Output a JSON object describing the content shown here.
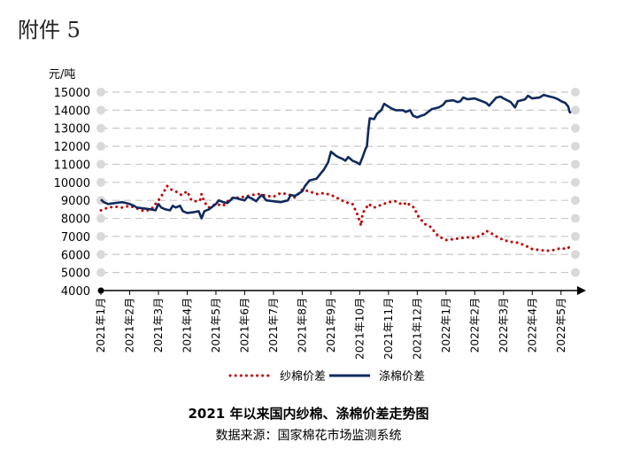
{
  "header": {
    "annex_label": "附件 5"
  },
  "colors": {
    "yarn_series": "#c00000",
    "poly_series": "#0f2a5e",
    "grid": "#c8c8c8",
    "marker": "#d9d9d9"
  },
  "chart_data": {
    "type": "line",
    "title": "2021 年以来国内纱棉、涤棉价差走势图",
    "source": "数据来源：国家棉花市场监测系统",
    "y_unit": "元/吨",
    "ylim": [
      4000,
      15000
    ],
    "y_ticks": [
      "15000",
      "14000",
      "13000",
      "12000",
      "11000",
      "10000",
      "9000",
      "8000",
      "7000",
      "6000",
      "5000",
      "4000"
    ],
    "x_ticks": [
      "2021年1月",
      "2021年2月",
      "2021年3月",
      "2021年4月",
      "2021年5月",
      "2021年6月",
      "2021年7月",
      "2021年8月",
      "2021年9月",
      "2021年10月",
      "2021年11月",
      "2021年12月",
      "2022年1月",
      "2022年2月",
      "2022年3月",
      "2022年4月",
      "2022年5月"
    ],
    "grid": true,
    "legend_position": "bottom",
    "series": [
      {
        "name": "纱棉价差",
        "style": "dotted",
        "points": [
          [
            0,
            8450
          ],
          [
            0.25,
            8600
          ],
          [
            0.5,
            8650
          ],
          [
            0.75,
            8600
          ],
          [
            1,
            8700
          ],
          [
            1.25,
            8550
          ],
          [
            1.5,
            8400
          ],
          [
            1.75,
            8500
          ],
          [
            2,
            9000
          ],
          [
            2.15,
            9350
          ],
          [
            2.3,
            9800
          ],
          [
            2.45,
            9600
          ],
          [
            2.6,
            9500
          ],
          [
            2.8,
            9300
          ],
          [
            3,
            9500
          ],
          [
            3.15,
            9000
          ],
          [
            3.3,
            8950
          ],
          [
            3.45,
            9000
          ],
          [
            3.5,
            9350
          ],
          [
            3.6,
            8900
          ],
          [
            3.75,
            8600
          ],
          [
            4,
            8800
          ],
          [
            4.25,
            8700
          ],
          [
            4.5,
            9100
          ],
          [
            4.75,
            9150
          ],
          [
            5,
            9200
          ],
          [
            5.25,
            9300
          ],
          [
            5.5,
            9350
          ],
          [
            5.75,
            9250
          ],
          [
            6,
            9200
          ],
          [
            6.25,
            9400
          ],
          [
            6.5,
            9350
          ],
          [
            6.75,
            9150
          ],
          [
            7,
            9600
          ],
          [
            7.25,
            9500
          ],
          [
            7.5,
            9350
          ],
          [
            7.75,
            9400
          ],
          [
            8,
            9300
          ],
          [
            8.25,
            9100
          ],
          [
            8.5,
            8900
          ],
          [
            8.75,
            8800
          ],
          [
            8.9,
            8300
          ],
          [
            9,
            7800
          ],
          [
            9.05,
            7600
          ],
          [
            9.1,
            8300
          ],
          [
            9.2,
            8500
          ],
          [
            9.3,
            8800
          ],
          [
            9.5,
            8600
          ],
          [
            9.75,
            8750
          ],
          [
            10,
            8900
          ],
          [
            10.25,
            8950
          ],
          [
            10.5,
            8750
          ],
          [
            10.65,
            8900
          ],
          [
            10.75,
            8700
          ],
          [
            10.9,
            8600
          ],
          [
            11,
            8200
          ],
          [
            11.25,
            7700
          ],
          [
            11.5,
            7500
          ],
          [
            11.6,
            7250
          ],
          [
            11.75,
            7000
          ],
          [
            12,
            6800
          ],
          [
            12.25,
            6850
          ],
          [
            12.5,
            6900
          ],
          [
            12.75,
            6950
          ],
          [
            13,
            6900
          ],
          [
            13.25,
            7100
          ],
          [
            13.4,
            7300
          ],
          [
            13.5,
            7250
          ],
          [
            13.75,
            7000
          ],
          [
            14,
            6800
          ],
          [
            14.25,
            6700
          ],
          [
            14.5,
            6650
          ],
          [
            14.75,
            6500
          ],
          [
            15,
            6300
          ],
          [
            15.25,
            6250
          ],
          [
            15.5,
            6200
          ],
          [
            15.75,
            6250
          ],
          [
            16,
            6350
          ],
          [
            16.2,
            6300
          ],
          [
            16.35,
            6500
          ]
        ]
      },
      {
        "name": "涤棉价差",
        "style": "solid",
        "points": [
          [
            0,
            9050
          ],
          [
            0.1,
            8900
          ],
          [
            0.25,
            8800
          ],
          [
            0.5,
            8850
          ],
          [
            0.75,
            8900
          ],
          [
            1,
            8800
          ],
          [
            1.15,
            8700
          ],
          [
            1.25,
            8600
          ],
          [
            1.5,
            8550
          ],
          [
            1.75,
            8500
          ],
          [
            1.9,
            8450
          ],
          [
            2,
            8800
          ],
          [
            2.1,
            8600
          ],
          [
            2.25,
            8500
          ],
          [
            2.4,
            8450
          ],
          [
            2.5,
            8700
          ],
          [
            2.6,
            8600
          ],
          [
            2.75,
            8700
          ],
          [
            2.85,
            8400
          ],
          [
            3,
            8300
          ],
          [
            3.25,
            8350
          ],
          [
            3.4,
            8400
          ],
          [
            3.5,
            8000
          ],
          [
            3.6,
            8400
          ],
          [
            3.75,
            8500
          ],
          [
            4,
            8800
          ],
          [
            4.1,
            9000
          ],
          [
            4.25,
            8900
          ],
          [
            4.4,
            8850
          ],
          [
            4.5,
            9000
          ],
          [
            4.6,
            9150
          ],
          [
            4.75,
            9100
          ],
          [
            5,
            9000
          ],
          [
            5.1,
            9200
          ],
          [
            5.25,
            9100
          ],
          [
            5.4,
            8950
          ],
          [
            5.5,
            9150
          ],
          [
            5.6,
            9300
          ],
          [
            5.75,
            9000
          ],
          [
            6,
            8950
          ],
          [
            6.25,
            8900
          ],
          [
            6.5,
            9000
          ],
          [
            6.6,
            9300
          ],
          [
            6.75,
            9250
          ],
          [
            7,
            9500
          ],
          [
            7.1,
            9800
          ],
          [
            7.25,
            10100
          ],
          [
            7.5,
            10200
          ],
          [
            7.75,
            10700
          ],
          [
            7.9,
            11100
          ],
          [
            8,
            11700
          ],
          [
            8.15,
            11500
          ],
          [
            8.25,
            11400
          ],
          [
            8.4,
            11300
          ],
          [
            8.5,
            11200
          ],
          [
            8.6,
            11400
          ],
          [
            8.75,
            11200
          ],
          [
            8.9,
            11100
          ],
          [
            9,
            11000
          ],
          [
            9.1,
            11400
          ],
          [
            9.2,
            11850
          ],
          [
            9.25,
            12000
          ],
          [
            9.3,
            12900
          ],
          [
            9.35,
            13550
          ],
          [
            9.5,
            13500
          ],
          [
            9.6,
            13800
          ],
          [
            9.75,
            14000
          ],
          [
            9.85,
            14350
          ],
          [
            10,
            14200
          ],
          [
            10.1,
            14100
          ],
          [
            10.25,
            14000
          ],
          [
            10.5,
            14000
          ],
          [
            10.6,
            13900
          ],
          [
            10.75,
            14000
          ],
          [
            10.85,
            13700
          ],
          [
            11,
            13600
          ],
          [
            11.15,
            13700
          ],
          [
            11.25,
            13750
          ],
          [
            11.5,
            14050
          ],
          [
            11.75,
            14150
          ],
          [
            11.9,
            14300
          ],
          [
            12,
            14500
          ],
          [
            12.25,
            14550
          ],
          [
            12.4,
            14450
          ],
          [
            12.5,
            14500
          ],
          [
            12.6,
            14700
          ],
          [
            12.75,
            14600
          ],
          [
            13,
            14650
          ],
          [
            13.25,
            14500
          ],
          [
            13.4,
            14400
          ],
          [
            13.5,
            14250
          ],
          [
            13.75,
            14700
          ],
          [
            13.9,
            14750
          ],
          [
            14,
            14650
          ],
          [
            14.25,
            14450
          ],
          [
            14.4,
            14150
          ],
          [
            14.5,
            14500
          ],
          [
            14.75,
            14600
          ],
          [
            14.85,
            14800
          ],
          [
            15,
            14650
          ],
          [
            15.25,
            14700
          ],
          [
            15.4,
            14850
          ],
          [
            15.5,
            14800
          ],
          [
            15.75,
            14700
          ],
          [
            15.9,
            14600
          ],
          [
            16,
            14500
          ],
          [
            16.15,
            14400
          ],
          [
            16.25,
            14200
          ],
          [
            16.3,
            13900
          ],
          [
            16.35,
            13850
          ]
        ]
      }
    ]
  }
}
